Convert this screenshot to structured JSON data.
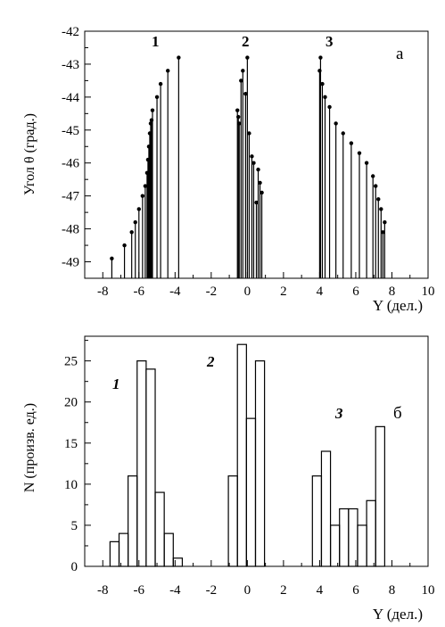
{
  "chart_data": [
    {
      "type": "stem",
      "panel_label": "а",
      "ylabel": "Угол θ (град.)",
      "xlabel": "Y (дел.)",
      "xlim": [
        -9,
        10
      ],
      "ylim": [
        -49.5,
        -42
      ],
      "xticks": [
        "-8",
        "-6",
        "-4",
        "-2",
        "0",
        "2",
        "4",
        "6",
        "8",
        "10"
      ],
      "yticks": [
        "-42",
        "-43",
        "-44",
        "-45",
        "-46",
        "-47",
        "-48",
        "-49"
      ],
      "group_labels": [
        "1",
        "2",
        "3"
      ],
      "series": [
        {
          "x": [
            -7.5,
            -6.8,
            -6.4,
            -6.2,
            -6.0,
            -5.8,
            -5.65,
            -5.55,
            -5.5,
            -5.45,
            -5.4,
            -5.35,
            -5.3,
            -5.25,
            -5.0,
            -4.8,
            -4.4,
            -3.8
          ],
          "y": [
            -48.9,
            -48.5,
            -48.1,
            -47.8,
            -47.4,
            -47.0,
            -46.7,
            -46.3,
            -45.9,
            -45.5,
            -45.1,
            -44.8,
            -44.7,
            -44.4,
            -44.0,
            -43.6,
            -43.2,
            -42.8
          ]
        },
        {
          "x": [
            -0.55,
            -0.5,
            -0.45,
            -0.35,
            -0.25,
            -0.1,
            0.0,
            0.1,
            0.25,
            0.35,
            0.5,
            0.6,
            0.7,
            0.8
          ],
          "y": [
            -44.4,
            -44.6,
            -44.8,
            -43.5,
            -43.2,
            -43.9,
            -42.8,
            -45.1,
            -45.8,
            -46.0,
            -47.2,
            -46.2,
            -46.6,
            -46.9
          ]
        },
        {
          "x": [
            4.0,
            4.05,
            4.15,
            4.3,
            4.55,
            4.9,
            5.3,
            5.75,
            6.2,
            6.6,
            6.95,
            7.1,
            7.25,
            7.4,
            7.5,
            7.6
          ],
          "y": [
            -43.2,
            -42.8,
            -43.6,
            -44.0,
            -44.3,
            -44.8,
            -45.1,
            -45.4,
            -45.7,
            -46.0,
            -46.4,
            -46.7,
            -47.1,
            -47.4,
            -48.1,
            -47.8
          ]
        }
      ]
    },
    {
      "type": "histogram",
      "panel_label": "б",
      "ylabel": "N (произв. ед.)",
      "xlabel": "Y (дел.)",
      "xlim": [
        -9,
        10
      ],
      "ylim": [
        0,
        28
      ],
      "xticks": [
        "-8",
        "-6",
        "-4",
        "-2",
        "0",
        "2",
        "4",
        "6",
        "8",
        "10"
      ],
      "yticks": [
        "0",
        "5",
        "10",
        "15",
        "20",
        "25"
      ],
      "group_labels": [
        "1",
        "2",
        "3"
      ],
      "bars": [
        {
          "x0": -7.6,
          "x1": -7.1,
          "value": 3
        },
        {
          "x0": -7.1,
          "x1": -6.6,
          "value": 4
        },
        {
          "x0": -6.6,
          "x1": -6.1,
          "value": 11
        },
        {
          "x0": -6.1,
          "x1": -5.6,
          "value": 25
        },
        {
          "x0": -5.6,
          "x1": -5.1,
          "value": 24
        },
        {
          "x0": -5.1,
          "x1": -4.6,
          "value": 9
        },
        {
          "x0": -4.6,
          "x1": -4.1,
          "value": 4
        },
        {
          "x0": -4.1,
          "x1": -3.6,
          "value": 1
        },
        {
          "x0": -1.05,
          "x1": -0.55,
          "value": 11
        },
        {
          "x0": -0.55,
          "x1": -0.05,
          "value": 27
        },
        {
          "x0": -0.05,
          "x1": 0.45,
          "value": 18
        },
        {
          "x0": 0.45,
          "x1": 0.95,
          "value": 25
        },
        {
          "x0": 3.6,
          "x1": 4.1,
          "value": 11
        },
        {
          "x0": 4.1,
          "x1": 4.6,
          "value": 14
        },
        {
          "x0": 4.6,
          "x1": 5.1,
          "value": 5
        },
        {
          "x0": 5.1,
          "x1": 5.6,
          "value": 7
        },
        {
          "x0": 5.6,
          "x1": 6.1,
          "value": 7
        },
        {
          "x0": 6.1,
          "x1": 6.6,
          "value": 5
        },
        {
          "x0": 6.6,
          "x1": 7.1,
          "value": 8
        },
        {
          "x0": 7.1,
          "x1": 7.6,
          "value": 17
        }
      ]
    }
  ]
}
